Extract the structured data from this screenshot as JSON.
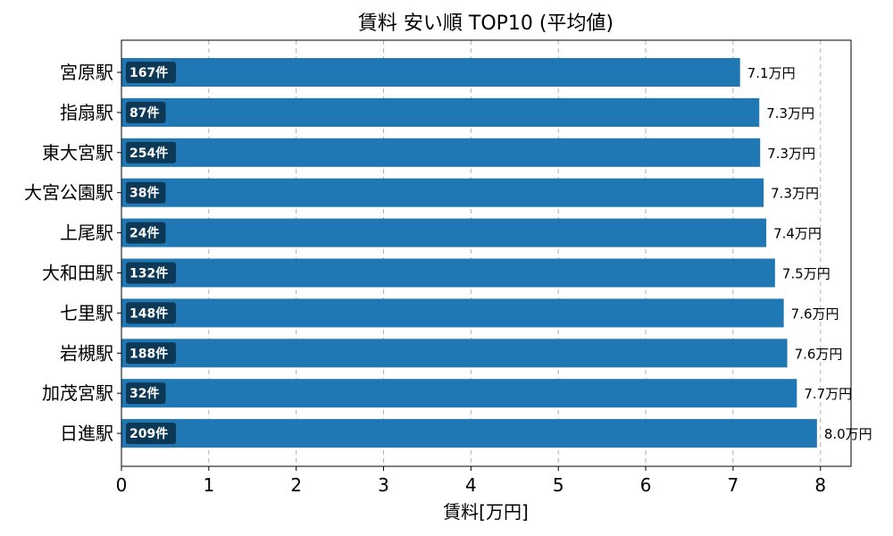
{
  "chart_data": {
    "type": "bar",
    "orientation": "horizontal",
    "title": "賃料 安い順 TOP10 (平均値)",
    "xlabel": "賃料[万円]",
    "ylabel": "",
    "xlim": [
      0,
      8.35
    ],
    "xticks": [
      0,
      1,
      2,
      3,
      4,
      5,
      6,
      7,
      8
    ],
    "grid": "x-dashed",
    "bar_color": "#1f77b4",
    "badge_color": "#0d3957",
    "categories": [
      "宮原駅",
      "指扇駅",
      "東大宮駅",
      "大宮公園駅",
      "上尾駅",
      "大和田駅",
      "七里駅",
      "岩槻駅",
      "加茂宮駅",
      "日進駅"
    ],
    "values": [
      7.08,
      7.3,
      7.31,
      7.35,
      7.38,
      7.48,
      7.58,
      7.62,
      7.73,
      7.96
    ],
    "value_labels": [
      "7.1万円",
      "7.3万円",
      "7.3万円",
      "7.3万円",
      "7.4万円",
      "7.5万円",
      "7.6万円",
      "7.6万円",
      "7.7万円",
      "8.0万円"
    ],
    "counts": [
      "167件",
      "87件",
      "254件",
      "38件",
      "24件",
      "132件",
      "148件",
      "188件",
      "32件",
      "209件"
    ]
  }
}
